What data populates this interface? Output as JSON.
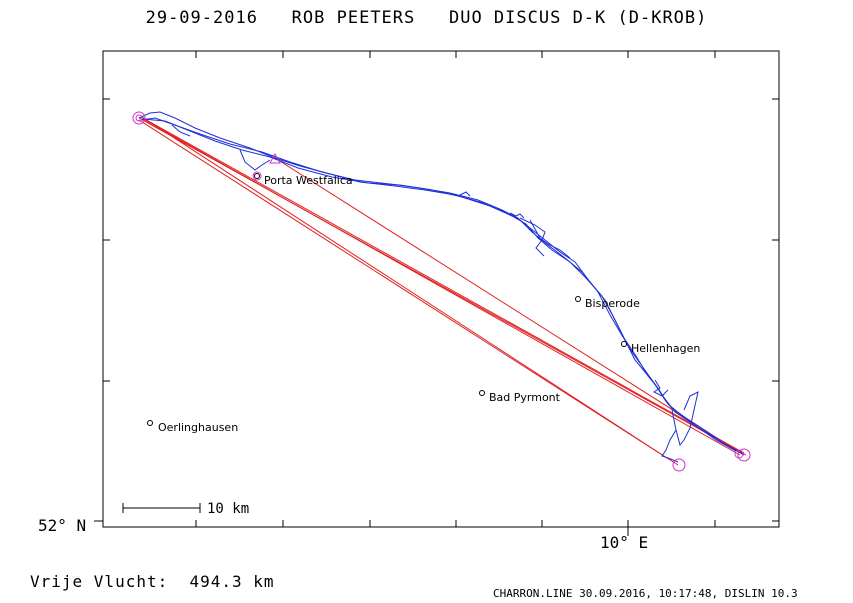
{
  "header": {
    "date": "29-09-2016",
    "pilot": "ROB PEETERS",
    "glider": "DUO DISCUS D-K (D-KROB)"
  },
  "axes": {
    "lat_label": "52° N",
    "lon_label": "10° E"
  },
  "places": [
    {
      "name": "Porta Westfalica"
    },
    {
      "name": "Bisperode"
    },
    {
      "name": "Hellenhagen"
    },
    {
      "name": "Bad Pyrmont"
    },
    {
      "name": "Oerlinghausen"
    }
  ],
  "scale_bar": {
    "label": "10 km"
  },
  "flight": {
    "distance_label": "Vrije Vlucht:",
    "distance_value": "494.3 km"
  },
  "footer": {
    "text": "CHARRON.LINE 30.09.2016, 10:17:48, DISLIN 10.3"
  },
  "colors": {
    "track": "#1f2fd6",
    "task_lines": "#e02020",
    "turnpoints": "#cc33cc",
    "frame": "#000000"
  }
}
